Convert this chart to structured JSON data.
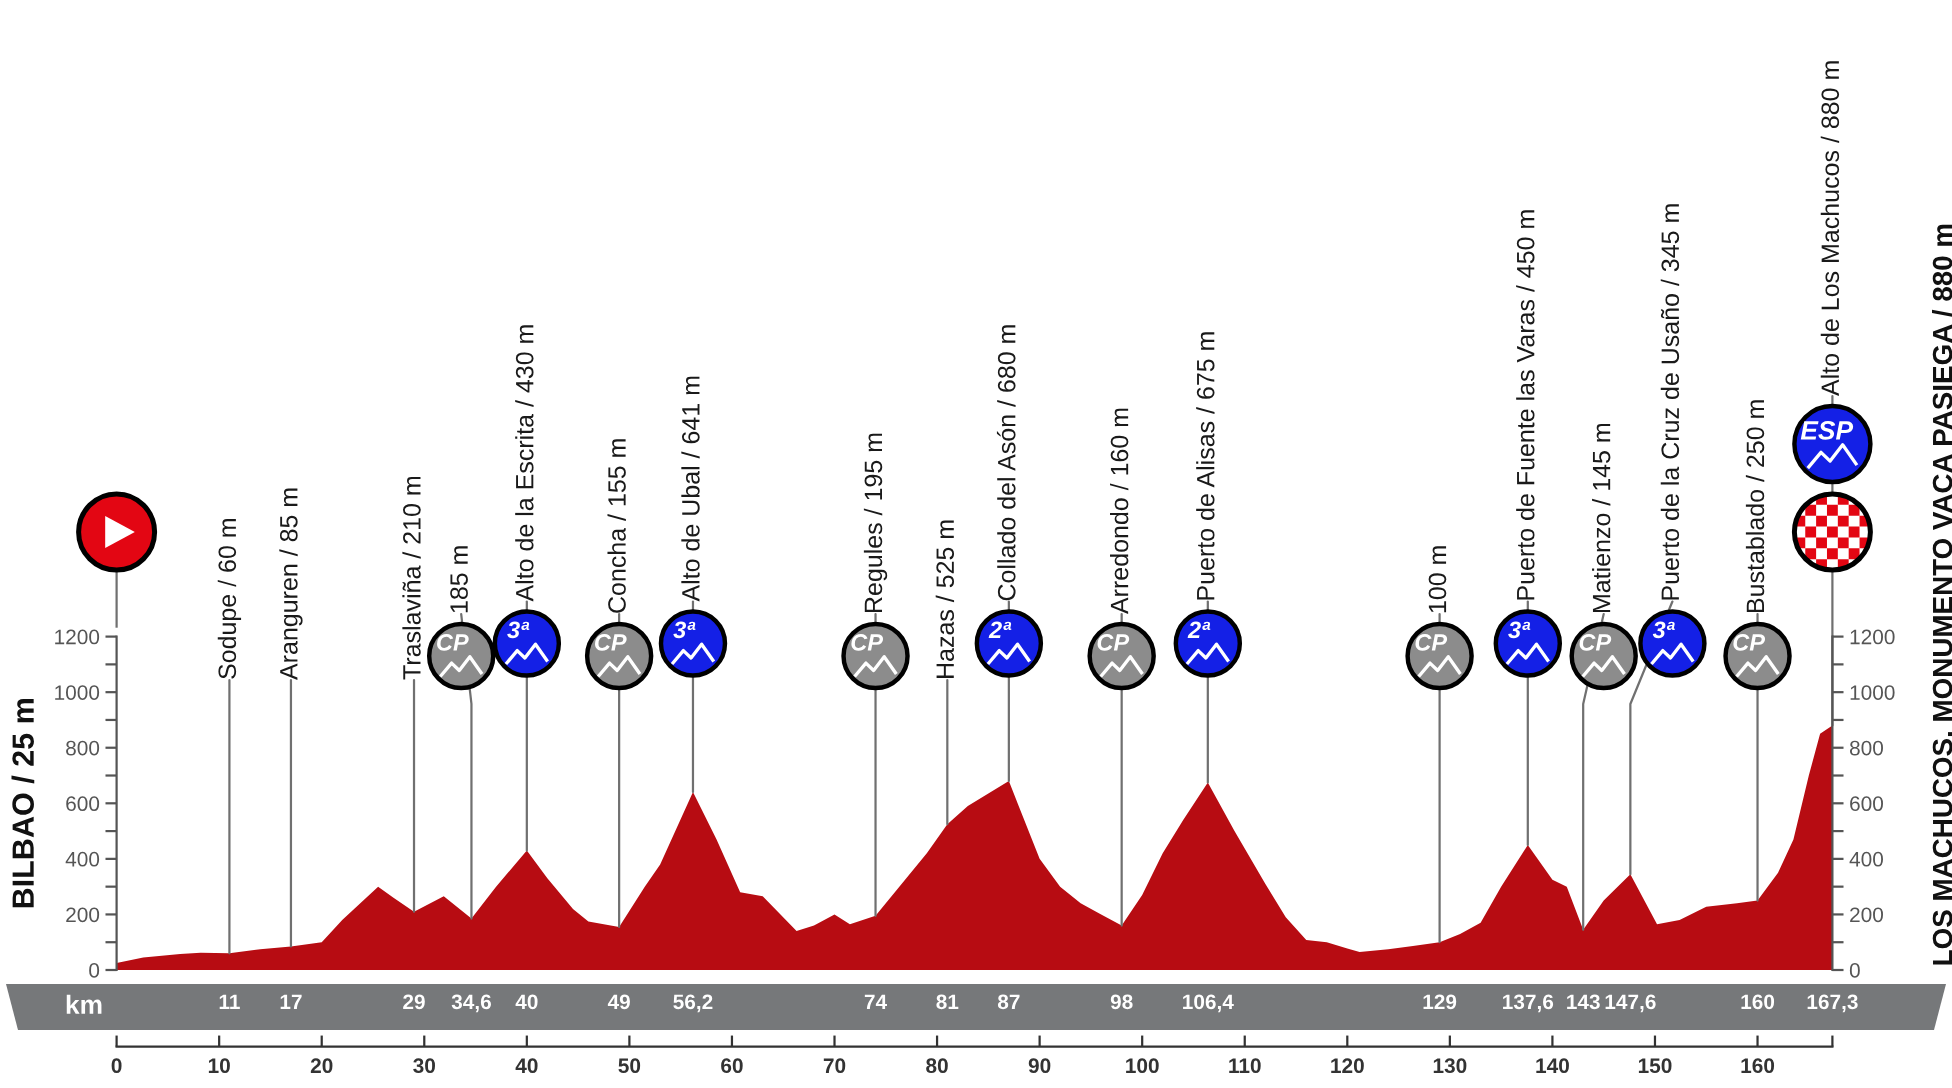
{
  "chart_data": {
    "type": "area",
    "ylabel": "BILBAO / 25 m",
    "y2label": "LOS MACHUCOS. MONUMENTO VACA PASIEGA / 880 m",
    "x2label": "km",
    "series": [
      {
        "color": "#b70c12",
        "x": [
          0,
          2.6,
          6.2,
          8.2,
          11,
          14,
          17,
          20,
          22,
          25.5,
          27,
          29,
          31.9,
          34.6,
          37,
          40,
          42,
          44.5,
          46,
          49,
          51.5,
          53,
          56.2,
          58.5,
          60.8,
          63,
          66.3,
          68,
          70,
          71.5,
          74,
          77,
          79,
          81,
          83,
          87,
          90,
          92,
          94,
          96,
          98,
          100,
          102,
          104,
          106.4,
          109,
          112,
          114,
          116,
          118,
          120,
          121.2,
          124,
          126.4,
          129,
          131,
          133,
          135,
          137.6,
          140,
          141.4,
          143,
          145,
          147.6,
          150.2,
          152.4,
          155,
          158,
          160,
          162,
          163.5,
          165,
          166.1,
          167.3
        ],
        "values": [
          25,
          45,
          58,
          62,
          60,
          75,
          85,
          100,
          180,
          300,
          260,
          210,
          265,
          185,
          300,
          430,
          330,
          220,
          175,
          155,
          300,
          380,
          641,
          470,
          280,
          265,
          140,
          160,
          200,
          165,
          195,
          330,
          420,
          525,
          590,
          680,
          400,
          300,
          240,
          200,
          160,
          270,
          420,
          540,
          675,
          500,
          310,
          190,
          108,
          100,
          77,
          65,
          75,
          86,
          100,
          130,
          170,
          300,
          450,
          325,
          300,
          145,
          250,
          345,
          165,
          180,
          228,
          240,
          250,
          350,
          470,
          700,
          850,
          880
        ]
      },
      {
        "type": "scatter",
        "marker": "circle",
        "x": [
          33.6,
          40,
          49,
          56.2,
          74,
          87,
          98,
          106.4,
          129,
          137.6,
          145,
          151.7,
          160
        ],
        "values": [
          1130,
          1175,
          1130,
          1175,
          1130,
          1175,
          1130,
          1175,
          1130,
          1175,
          1130,
          1175,
          1130
        ],
        "colors": [
          "#8c8c8c",
          "#1420e6",
          "#8c8c8c",
          "#1420e6",
          "#8c8c8c",
          "#1420e6",
          "#8c8c8c",
          "#1420e6",
          "#8c8c8c",
          "#1420e6",
          "#8c8c8c",
          "#1420e6",
          "#8c8c8c"
        ]
      }
    ],
    "xlim": [
      0,
      167.3
    ],
    "xticks": [
      0,
      10,
      20,
      30,
      40,
      50,
      60,
      70,
      80,
      90,
      100,
      110,
      120,
      130,
      140,
      150,
      160,
      {
        "value": 167.3,
        "label": null
      }
    ],
    "ylim": [
      0,
      1200
    ],
    "yticks": [
      0,
      {
        "value": 100,
        "label": null
      },
      200,
      {
        "value": 300,
        "label": null
      },
      400,
      {
        "value": 500,
        "label": null
      },
      600,
      {
        "value": 700,
        "label": null
      },
      800,
      {
        "value": 900,
        "label": null
      },
      1000,
      {
        "value": 1100,
        "label": null
      },
      1200
    ],
    "y2lim": [
      0,
      1200
    ],
    "y2ticks": [
      0,
      {
        "value": 100,
        "label": null
      },
      200,
      {
        "value": 300,
        "label": null
      },
      400,
      {
        "value": 500,
        "label": null
      },
      600,
      {
        "value": 700,
        "label": null
      },
      800,
      {
        "value": 900,
        "label": null
      },
      1000,
      {
        "value": 1100,
        "label": null
      },
      1200
    ],
    "x2lim": [
      0,
      167.3
    ],
    "x2ticks": [
      11,
      17,
      29,
      {
        "value": 34.6,
        "label": "34,6"
      },
      40,
      49,
      {
        "value": 56.2,
        "label": "56,2"
      },
      74,
      81,
      87,
      98,
      {
        "value": 106.4,
        "label": "106,4"
      },
      129,
      {
        "value": 137.6,
        "label": "137,6"
      },
      143,
      {
        "value": 147.6,
        "label": "147,6"
      },
      160,
      {
        "value": 167.3,
        "label": "167,3"
      }
    ],
    "annotations": [
      {
        "text": "Sodupe / 60 m",
        "x": 11,
        "y": 60
      },
      {
        "text": "Aranguren / 85 m",
        "x": 17,
        "y": 85
      },
      {
        "text": "Traslaviña / 210 m",
        "x": 29,
        "y": 210
      },
      {
        "text": "185 m",
        "x": 34.6,
        "y": 185
      },
      {
        "text": "CP",
        "x": 33.6,
        "y": 1130
      },
      {
        "text": "Alto de la Escrita / 430 m",
        "x": 40,
        "y": 430
      },
      {
        "text": "3ª",
        "x": 40,
        "y": 1175
      },
      {
        "text": "Concha / 155 m",
        "x": 49,
        "y": 155
      },
      {
        "text": "CP",
        "x": 49,
        "y": 1130
      },
      {
        "text": "Alto de Ubal / 641 m",
        "x": 56.2,
        "y": 641
      },
      {
        "text": "3ª",
        "x": 56.2,
        "y": 1175
      },
      {
        "text": "Regules / 195 m",
        "x": 74,
        "y": 195
      },
      {
        "text": "CP",
        "x": 74,
        "y": 1130
      },
      {
        "text": "Hazas / 525 m",
        "x": 81,
        "y": 525
      },
      {
        "text": "Collado del Asón / 680 m",
        "x": 87,
        "y": 680
      },
      {
        "text": "2ª",
        "x": 87,
        "y": 1175
      },
      {
        "text": "Arredondo / 160 m",
        "x": 98,
        "y": 160
      },
      {
        "text": "CP",
        "x": 98,
        "y": 1130
      },
      {
        "text": "Puerto de Alisas / 675 m",
        "x": 106.4,
        "y": 675
      },
      {
        "text": "2ª",
        "x": 106.4,
        "y": 1175
      },
      {
        "text": "100 m",
        "x": 129,
        "y": 100
      },
      {
        "text": "CP",
        "x": 129,
        "y": 1130
      },
      {
        "text": "Puerto de Fuente las Varas / 450 m",
        "x": 137.6,
        "y": 450
      },
      {
        "text": "3ª",
        "x": 137.6,
        "y": 1175
      },
      {
        "text": "Matienzo / 145 m",
        "x": 143,
        "y": 145
      },
      {
        "text": "CP",
        "x": 145,
        "y": 1130
      },
      {
        "text": "Puerto de la Cruz de Usaño / 345 m",
        "x": 147.6,
        "y": 345
      },
      {
        "text": "3ª",
        "x": 151.7,
        "y": 1175
      },
      {
        "text": "Bustablado / 250 m",
        "x": 160,
        "y": 250
      },
      {
        "text": "CP",
        "x": 160,
        "y": 1130
      },
      {
        "text": "Alto de Los Machucos / 880 m",
        "x": 167.3,
        "y": 880
      },
      "ESP"
    ]
  }
}
